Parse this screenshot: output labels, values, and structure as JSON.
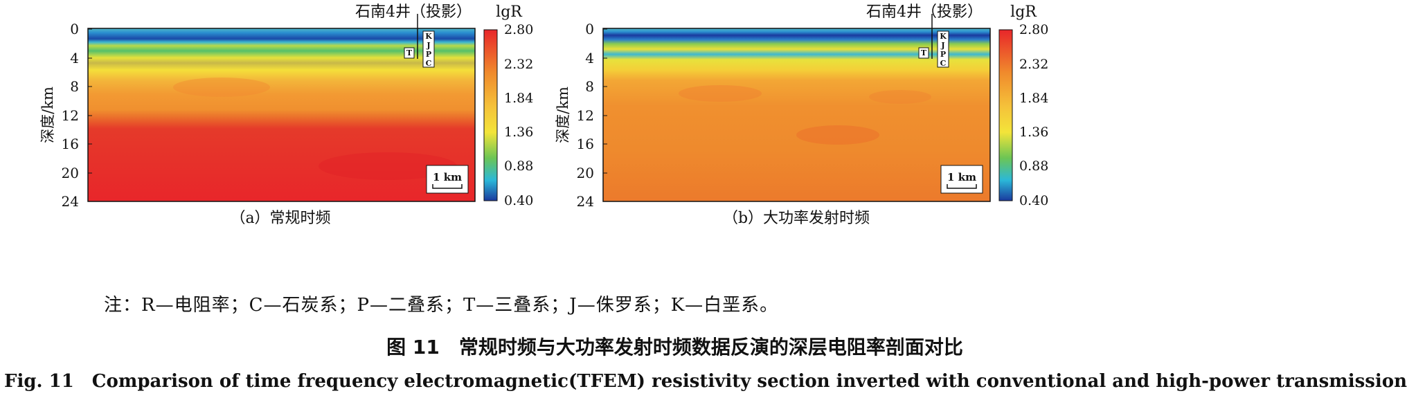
{
  "panels": [
    {
      "id": "a",
      "caption": "（a）常规时频",
      "well_label": "石南4井（投影）",
      "colorbar_title": "lgR",
      "ylabel": "深度/km",
      "yticks": [
        "0",
        "4",
        "8",
        "12",
        "16",
        "20",
        "24"
      ],
      "cbar_ticks": [
        "2.80",
        "2.32",
        "1.84",
        "1.36",
        "0.88",
        "0.40"
      ],
      "strata_right": [
        "K",
        "J",
        "P",
        "C"
      ],
      "strata_left": "T",
      "scale_label": "1 km"
    },
    {
      "id": "b",
      "caption": "（b）大功率发射时频",
      "well_label": "石南4井（投影）",
      "colorbar_title": "lgR",
      "ylabel": "深度/km",
      "yticks": [
        "0",
        "4",
        "8",
        "12",
        "16",
        "20",
        "24"
      ],
      "cbar_ticks": [
        "2.80",
        "2.32",
        "1.84",
        "1.36",
        "0.88",
        "0.40"
      ],
      "strata_right": [
        "K",
        "J",
        "P",
        "C"
      ],
      "strata_left": "T",
      "scale_label": "1 km"
    }
  ],
  "note": "注：R—电阻率；C—石炭系；P—二叠系；T—三叠系；J—侏罗系；K—白垩系。",
  "figure_caption_cn": "图 11　常规时频与大功率发射时频数据反演的深层电阻率剖面对比",
  "figure_caption_en": "Fig. 11　Comparison of time frequency electromagnetic(TFEM) resistivity section inverted with conventional and high-power transmission",
  "colors": {
    "high": "#e8262a",
    "orange": "#f08a2c",
    "yellow": "#f3e43a",
    "green": "#5cc15a",
    "cyan": "#2bb8d8",
    "low": "#1a3a9e"
  }
}
